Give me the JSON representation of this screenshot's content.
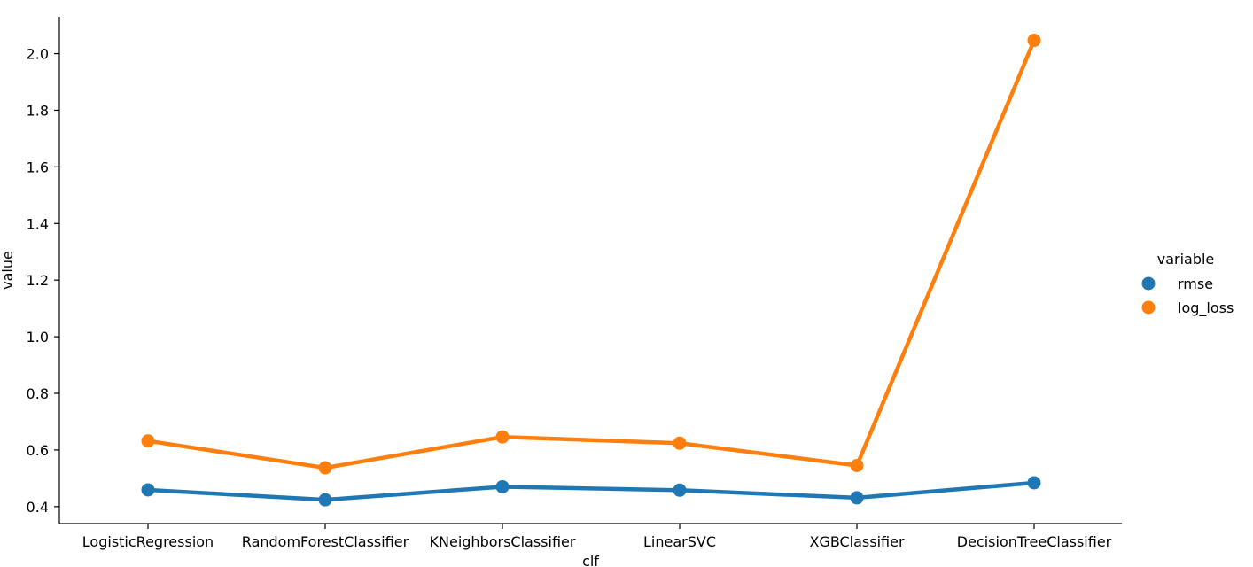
{
  "chart_data": {
    "type": "line",
    "xlabel": "clf",
    "ylabel": "value",
    "categories": [
      "LogisticRegression",
      "RandomForestClassifier",
      "KNeighborsClassifier",
      "LinearSVC",
      "XGBClassifier",
      "DecisionTreeClassifier"
    ],
    "series": [
      {
        "name": "rmse",
        "color": "#1f77b4",
        "values": [
          0.459,
          0.424,
          0.47,
          0.458,
          0.431,
          0.484
        ]
      },
      {
        "name": "log_loss",
        "color": "#ff7f0e",
        "values": [
          0.632,
          0.537,
          0.646,
          0.624,
          0.545,
          2.047
        ]
      }
    ],
    "ylim": [
      0.34,
      2.13
    ],
    "yticks": [
      "0.4",
      "0.6",
      "0.8",
      "1.0",
      "1.2",
      "1.4",
      "1.6",
      "1.8",
      "2.0"
    ],
    "grid": false,
    "legend": {
      "title": "variable",
      "placement": "right"
    }
  }
}
